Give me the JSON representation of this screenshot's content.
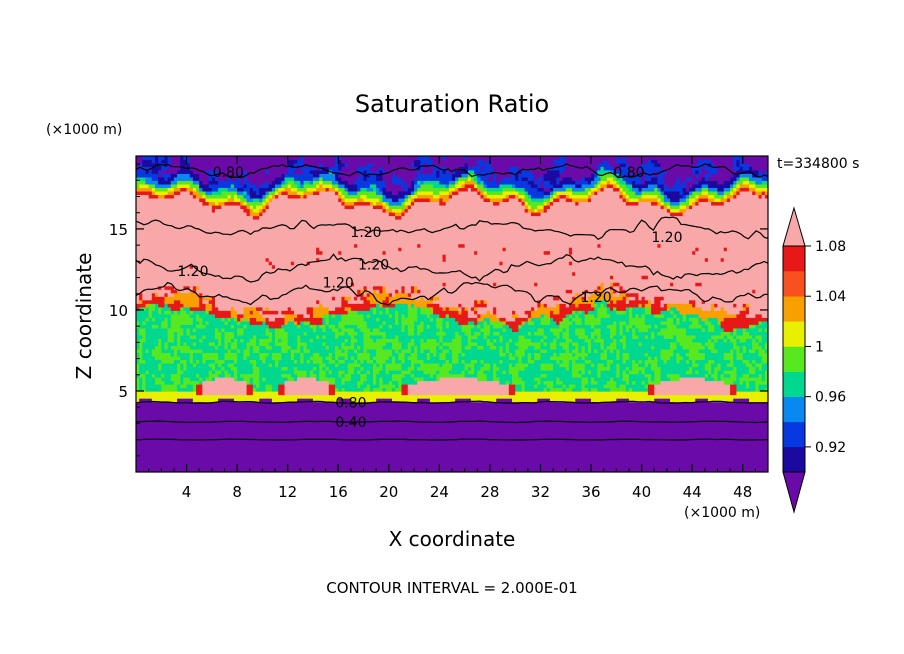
{
  "chart_data": {
    "type": "heatmap",
    "title": "Saturation Ratio",
    "time_label": "t=334800 s",
    "xlabel": "X coordinate",
    "ylabel": "Z coordinate",
    "x_unit": "(×1000 m)",
    "y_unit": "(×1000 m)",
    "xlim": [
      0,
      50
    ],
    "ylim": [
      0,
      19.5
    ],
    "x_ticks": [
      "4",
      "8",
      "12",
      "16",
      "20",
      "24",
      "28",
      "32",
      "36",
      "40",
      "44",
      "48"
    ],
    "y_ticks": [
      "5",
      "10",
      "15"
    ],
    "footer": "CONTOUR INTERVAL = 2.000E-01",
    "colorbar": {
      "ticks": [
        "0.92",
        "0.96",
        "1",
        "1.04",
        "1.08"
      ],
      "levels": [
        0.92,
        0.96,
        1.0,
        1.04,
        1.08
      ],
      "colors": [
        "#6a0aa8",
        "#1a0aa0",
        "#0838e0",
        "#0888f0",
        "#00d890",
        "#58e820",
        "#e8f000",
        "#f8a000",
        "#f85020",
        "#e81818",
        "#f8a8a8"
      ]
    },
    "contour_labels": [
      {
        "text": "0.80",
        "x": 7.3,
        "z": 18.5
      },
      {
        "text": "0.80",
        "x": 39.0,
        "z": 18.5
      },
      {
        "text": "1.20",
        "x": 18.2,
        "z": 14.8
      },
      {
        "text": "1.20",
        "x": 42.0,
        "z": 14.5
      },
      {
        "text": "1.20",
        "x": 4.5,
        "z": 12.4
      },
      {
        "text": "1.20",
        "x": 18.8,
        "z": 12.8
      },
      {
        "text": "1.20",
        "x": 16.0,
        "z": 11.7
      },
      {
        "text": "1.20",
        "x": 36.4,
        "z": 10.8
      },
      {
        "text": "0.80",
        "x": 17.0,
        "z": 4.3
      },
      {
        "text": "0.40",
        "x": 17.0,
        "z": 3.1
      }
    ]
  }
}
